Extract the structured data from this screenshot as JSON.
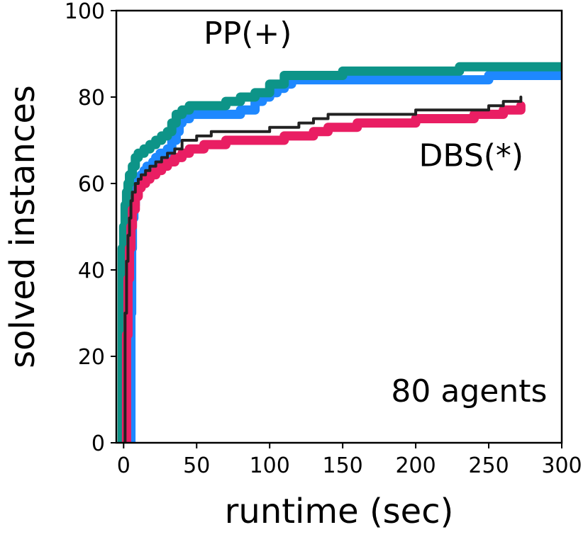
{
  "chart_data": {
    "type": "line",
    "title": "",
    "xlabel": "runtime (sec)",
    "ylabel": "solved instances",
    "xlim": [
      -5,
      300
    ],
    "ylim": [
      0,
      100
    ],
    "xticks": [
      0,
      50,
      100,
      150,
      200,
      250,
      300
    ],
    "yticks": [
      0,
      20,
      40,
      60,
      80,
      100
    ],
    "grid": false,
    "legend": "none",
    "annotations": {
      "panel_label": "80 agents",
      "upper_label": "PP(+)",
      "lower_label": "DBS(*)"
    },
    "series": [
      {
        "color": "#1E88FF",
        "stroke": "thick",
        "x": [
          5,
          5,
          5.5,
          6,
          7,
          8,
          9,
          10,
          12,
          14,
          16,
          18,
          20,
          22,
          25,
          28,
          30,
          33,
          36,
          38,
          40,
          45,
          55,
          65,
          80,
          90,
          95,
          100,
          105,
          110,
          115,
          120,
          150,
          200,
          250,
          300
        ],
        "y": [
          0,
          30,
          45,
          52,
          55,
          58,
          60,
          61,
          62,
          63,
          64,
          64,
          65,
          66,
          67,
          67,
          68,
          70,
          72,
          74,
          75,
          76,
          76,
          76,
          77,
          79,
          80,
          81,
          82,
          83,
          84,
          84,
          84,
          84,
          85,
          85
        ]
      },
      {
        "color": "#0D9488",
        "stroke": "thick",
        "x": [
          -1,
          -1,
          0,
          1,
          2,
          3,
          4,
          6,
          8,
          10,
          14,
          18,
          22,
          26,
          30,
          33,
          36,
          40,
          45,
          55,
          70,
          80,
          90,
          100,
          110,
          120,
          150,
          200,
          230,
          250,
          300
        ],
        "y": [
          0,
          45,
          50,
          55,
          58,
          60,
          62,
          64,
          66,
          67,
          68,
          69,
          70,
          71,
          72,
          74,
          76,
          77,
          78,
          78,
          79,
          80,
          81,
          83,
          85,
          85,
          86,
          86,
          87,
          87,
          87
        ]
      },
      {
        "color": "#E91E63",
        "stroke": "thick",
        "x": [
          2,
          2,
          3,
          4,
          5,
          6,
          8,
          10,
          12,
          15,
          18,
          22,
          26,
          30,
          35,
          40,
          45,
          55,
          70,
          90,
          110,
          125,
          130,
          140,
          160,
          200,
          230,
          240,
          260,
          272
        ],
        "y": [
          0,
          25,
          38,
          45,
          50,
          54,
          57,
          59,
          60,
          61,
          62,
          63,
          64,
          65,
          66,
          67,
          68,
          69,
          70,
          70,
          71,
          71,
          72,
          73,
          74,
          75,
          75,
          76,
          77,
          78
        ]
      },
      {
        "color": "#222222",
        "stroke": "thin",
        "x": [
          1,
          1,
          2,
          3,
          4,
          5,
          6,
          8,
          10,
          12,
          15,
          18,
          22,
          26,
          30,
          35,
          40,
          50,
          60,
          80,
          100,
          120,
          130,
          140,
          200,
          230,
          250,
          260,
          272
        ],
        "y": [
          0,
          30,
          42,
          48,
          52,
          56,
          58,
          60,
          61,
          62,
          63,
          64,
          65,
          66,
          67,
          68,
          70,
          71,
          72,
          72,
          73,
          74,
          75,
          76,
          77,
          77,
          78,
          79,
          80
        ]
      }
    ]
  }
}
